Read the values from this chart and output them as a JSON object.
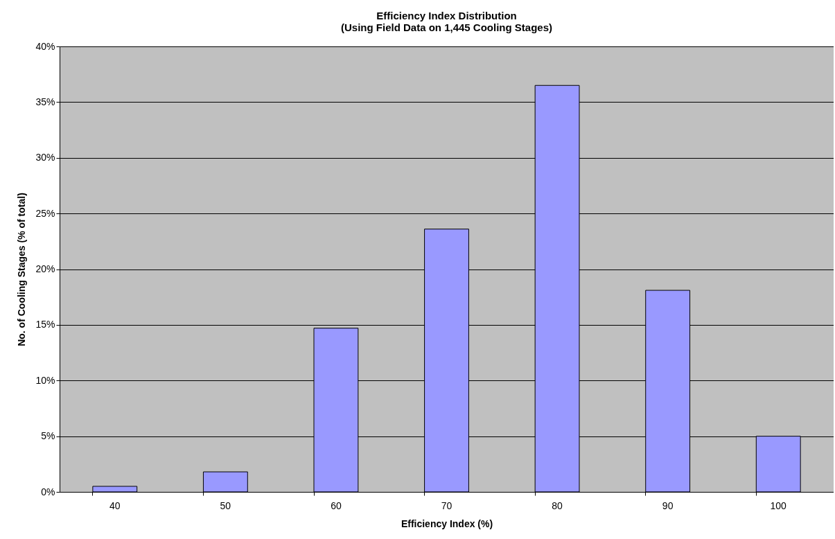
{
  "chart_data": {
    "type": "bar",
    "title": "Efficiency Index Distribution",
    "subtitle": "(Using Field Data on 1,445 Cooling Stages)",
    "xlabel": "Efficiency Index (%)",
    "ylabel": "No. of Cooling Stages (% of total)",
    "categories": [
      "40",
      "50",
      "60",
      "70",
      "80",
      "90",
      "100"
    ],
    "values": [
      0.5,
      1.8,
      14.7,
      23.6,
      36.5,
      18.1,
      5.0
    ],
    "color": "#9999ff",
    "ylim": [
      0,
      40
    ],
    "yticks": [
      {
        "value": 0,
        "label": "0%"
      },
      {
        "value": 5,
        "label": "5%"
      },
      {
        "value": 10,
        "label": "10%"
      },
      {
        "value": 15,
        "label": "15%"
      },
      {
        "value": 20,
        "label": "20%"
      },
      {
        "value": 25,
        "label": "25%"
      },
      {
        "value": 30,
        "label": "30%"
      },
      {
        "value": 35,
        "label": "35%"
      },
      {
        "value": 40,
        "label": "40%"
      }
    ],
    "grid": "y"
  }
}
